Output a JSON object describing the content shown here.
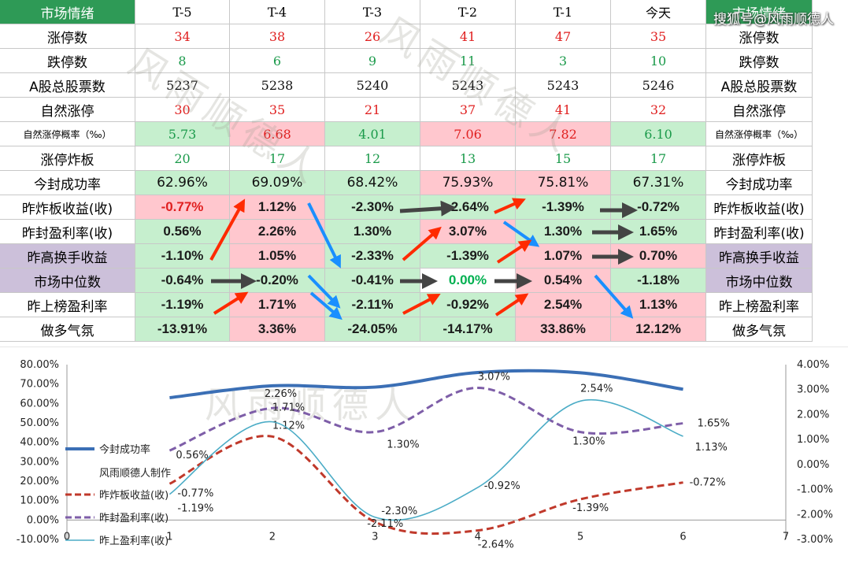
{
  "watermark": "搜狐号@风雨顺德人",
  "table": {
    "columns": [
      "市场情绪",
      "T-5",
      "T-4",
      "T-3",
      "T-2",
      "T-1",
      "今天",
      "市场情绪"
    ],
    "rows": [
      {
        "label": "涨停数",
        "values": [
          "34",
          "38",
          "26",
          "41",
          "47",
          "35"
        ],
        "style": "serif",
        "colors": [
          "red",
          "red",
          "red",
          "red",
          "red",
          "red"
        ],
        "bgs": [
          "",
          "",
          "",
          "",
          "",
          ""
        ]
      },
      {
        "label": "跌停数",
        "values": [
          "8",
          "6",
          "9",
          "11",
          "3",
          "10"
        ],
        "style": "serif",
        "colors": [
          "green",
          "green",
          "green",
          "green",
          "green",
          "green"
        ],
        "bgs": [
          "",
          "",
          "",
          "",
          "",
          ""
        ]
      },
      {
        "label": "A股总股票数",
        "values": [
          "5237",
          "5238",
          "5240",
          "5243",
          "5243",
          "5246"
        ],
        "style": "serif",
        "colors": [
          "black",
          "black",
          "black",
          "black",
          "black",
          "black"
        ],
        "bgs": [
          "",
          "",
          "",
          "",
          "",
          ""
        ]
      },
      {
        "label": "自然涨停",
        "values": [
          "30",
          "35",
          "21",
          "37",
          "41",
          "32"
        ],
        "style": "serif",
        "colors": [
          "red",
          "red",
          "red",
          "red",
          "red",
          "red"
        ],
        "bgs": [
          "",
          "",
          "",
          "",
          "",
          ""
        ]
      },
      {
        "label": "自然涨停概率（‰）",
        "values": [
          "5.73",
          "6.68",
          "4.01",
          "7.06",
          "7.82",
          "6.10"
        ],
        "style": "serif",
        "colors": [
          "green",
          "red",
          "green",
          "red",
          "red",
          "green"
        ],
        "bgs": [
          "green",
          "red",
          "green",
          "red",
          "red",
          "green"
        ],
        "small": true
      },
      {
        "label": "涨停炸板",
        "values": [
          "20",
          "17",
          "12",
          "13",
          "15",
          "17"
        ],
        "style": "serif",
        "colors": [
          "green",
          "green",
          "green",
          "green",
          "green",
          "green"
        ],
        "bgs": [
          "",
          "",
          "",
          "",
          "",
          ""
        ]
      },
      {
        "label": "今封成功率",
        "values": [
          "62.96%",
          "69.09%",
          "68.42%",
          "75.93%",
          "75.81%",
          "67.31%"
        ],
        "style": "sans",
        "colors": [
          "black",
          "black",
          "black",
          "black",
          "black",
          "black"
        ],
        "bgs": [
          "green",
          "green",
          "green",
          "red",
          "red",
          "green"
        ]
      },
      {
        "label": "昨炸板收益(收)",
        "values": [
          "-0.77%",
          "1.12%",
          "-2.30%",
          "-2.64%",
          "-1.39%",
          "-0.72%"
        ],
        "style": "bold",
        "colors": [
          "red",
          "dark",
          "dark",
          "dark",
          "dark",
          "dark"
        ],
        "bgs": [
          "red",
          "red",
          "green",
          "green",
          "green",
          "green"
        ]
      },
      {
        "label": "昨封盈利率(收)",
        "values": [
          "0.56%",
          "2.26%",
          "1.30%",
          "3.07%",
          "1.30%",
          "1.65%"
        ],
        "style": "bold",
        "colors": [
          "dark",
          "dark",
          "dark",
          "dark",
          "dark",
          "dark"
        ],
        "bgs": [
          "green",
          "red",
          "green",
          "red",
          "green",
          "green"
        ]
      },
      {
        "label": "昨高换手收益",
        "values": [
          "-1.10%",
          "1.05%",
          "-2.33%",
          "-1.39%",
          "1.07%",
          "0.70%"
        ],
        "style": "bold",
        "colors": [
          "dark",
          "dark",
          "dark",
          "dark",
          "dark",
          "dark"
        ],
        "bgs": [
          "green",
          "red",
          "green",
          "green",
          "red",
          "red"
        ],
        "labelBg": "purple"
      },
      {
        "label": "市场中位数",
        "values": [
          "-0.64%",
          "-0.20%",
          "-0.41%",
          "0.00%",
          "0.54%",
          "-1.18%"
        ],
        "style": "bold",
        "colors": [
          "dark",
          "dark",
          "dark",
          "brightgreen",
          "dark",
          "dark"
        ],
        "bgs": [
          "green",
          "green",
          "green",
          "",
          "red",
          "green"
        ],
        "labelBg": "purple"
      },
      {
        "label": "昨上榜盈利率",
        "values": [
          "-1.19%",
          "1.71%",
          "-2.11%",
          "-0.92%",
          "2.54%",
          "1.13%"
        ],
        "style": "bold",
        "colors": [
          "dark",
          "dark",
          "dark",
          "dark",
          "dark",
          "dark"
        ],
        "bgs": [
          "green",
          "red",
          "green",
          "green",
          "red",
          "red"
        ]
      },
      {
        "label": "做多气氛",
        "values": [
          "-13.91%",
          "3.36%",
          "-24.05%",
          "-14.17%",
          "33.86%",
          "12.12%"
        ],
        "style": "bold",
        "colors": [
          "dark",
          "dark",
          "dark",
          "dark",
          "dark",
          "dark"
        ],
        "bgs": [
          "green",
          "red",
          "green",
          "green",
          "red",
          "red"
        ]
      }
    ]
  },
  "colors": {
    "red_text": "#e02020",
    "green_text": "#1a9a4a",
    "dark_text": "#1b1b1b",
    "bright_green": "#00b050",
    "red_bg": "#ffc7ce",
    "green_bg": "#c6efce",
    "purple_bg": "#ccc0da",
    "header_bg": "#2e9a56",
    "arrow_red": "#ff2a00",
    "arrow_blue": "#1a8fff",
    "arrow_gray": "#444444"
  },
  "chart_watermark": "风雨顺德人",
  "chart_data": {
    "type": "line",
    "x": [
      1,
      2,
      3,
      4,
      5,
      6
    ],
    "xlim": [
      0,
      7
    ],
    "x_ticks": [
      "0",
      "1",
      "2",
      "3",
      "4",
      "5",
      "6",
      "7"
    ],
    "ylim_left": [
      -10,
      80
    ],
    "y_ticks_left": [
      "80.00%",
      "70.00%",
      "60.00%",
      "50.00%",
      "40.00%",
      "30.00%",
      "20.00%",
      "10.00%",
      "0.00%",
      "-10.00%"
    ],
    "ylim_right": [
      -3,
      4
    ],
    "y_ticks_right": [
      "4.00%",
      "3.00%",
      "2.00%",
      "1.00%",
      "0.00%",
      "-1.00%",
      "-2.00%",
      "-3.00%"
    ],
    "series": [
      {
        "name": "今封成功率",
        "axis": "left",
        "values": [
          62.96,
          69.09,
          68.42,
          75.93,
          75.81,
          67.31
        ],
        "color": "#3b6fb5",
        "style": "solid-thick"
      },
      {
        "name": "昨炸板收益(收)",
        "axis": "right",
        "values": [
          -0.77,
          1.12,
          -2.3,
          -2.64,
          -1.39,
          -0.72
        ],
        "color": "#c0392b",
        "style": "dashed",
        "labels": [
          "-0.77%",
          "1.12%",
          "-2.30%",
          "-2.64%",
          "-1.39%",
          "-0.72%"
        ]
      },
      {
        "name": "昨封盈利率(收)",
        "axis": "right",
        "values": [
          0.56,
          2.26,
          1.3,
          3.07,
          1.3,
          1.65
        ],
        "color": "#7e5ea8",
        "style": "dashed",
        "labels": [
          "0.56%",
          "2.26%",
          "1.30%",
          "3.07%",
          "1.30%",
          "1.65%"
        ]
      },
      {
        "name": "昨上盈利率(收)",
        "axis": "right",
        "values": [
          -1.19,
          1.71,
          -2.11,
          -0.92,
          2.54,
          1.13
        ],
        "color": "#4bacc6",
        "style": "solid-thin",
        "labels": [
          "-1.19%",
          "1.71%",
          "-2.11%",
          "-0.92%",
          "2.54%",
          "1.13%"
        ]
      }
    ],
    "legend_note": "风雨顺德人制作",
    "legend_position": "left"
  }
}
